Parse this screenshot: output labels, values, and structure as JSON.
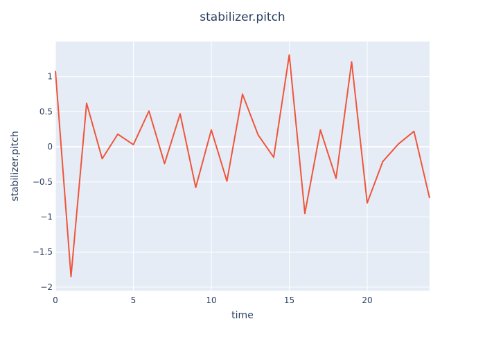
{
  "chart_data": {
    "type": "line",
    "title": "stabilizer.pitch",
    "xlabel": "time",
    "ylabel": "stabilizer.pitch",
    "xlim": [
      0,
      24
    ],
    "ylim": [
      -2.05,
      1.5
    ],
    "x_ticks": [
      0,
      5,
      10,
      15,
      20
    ],
    "x_tick_labels": [
      "0",
      "5",
      "10",
      "15",
      "20"
    ],
    "y_ticks": [
      -2,
      -1.5,
      -1,
      -0.5,
      0,
      0.5,
      1
    ],
    "y_tick_labels": [
      "−2",
      "−1.5",
      "−1",
      "−0.5",
      "0",
      "0.5",
      "1"
    ],
    "grid": true,
    "colors": {
      "line": "#ef553b",
      "plot_bg": "#e5ecf6",
      "grid": "#ffffff",
      "text": "#2a3f5f"
    },
    "series": [
      {
        "x": [
          0,
          1,
          2,
          3,
          4,
          5,
          6,
          7,
          8,
          9,
          10,
          11,
          12,
          13,
          14,
          15,
          16,
          17,
          18,
          19,
          20,
          21,
          22,
          23,
          24
        ],
        "values": [
          1.08,
          -1.85,
          0.62,
          -0.17,
          0.18,
          0.03,
          0.51,
          -0.24,
          0.47,
          -0.58,
          0.24,
          -0.49,
          0.75,
          0.17,
          -0.15,
          1.31,
          -0.95,
          0.24,
          -0.45,
          1.21,
          -0.8,
          -0.21,
          0.04,
          0.22,
          -0.73
        ]
      }
    ]
  }
}
